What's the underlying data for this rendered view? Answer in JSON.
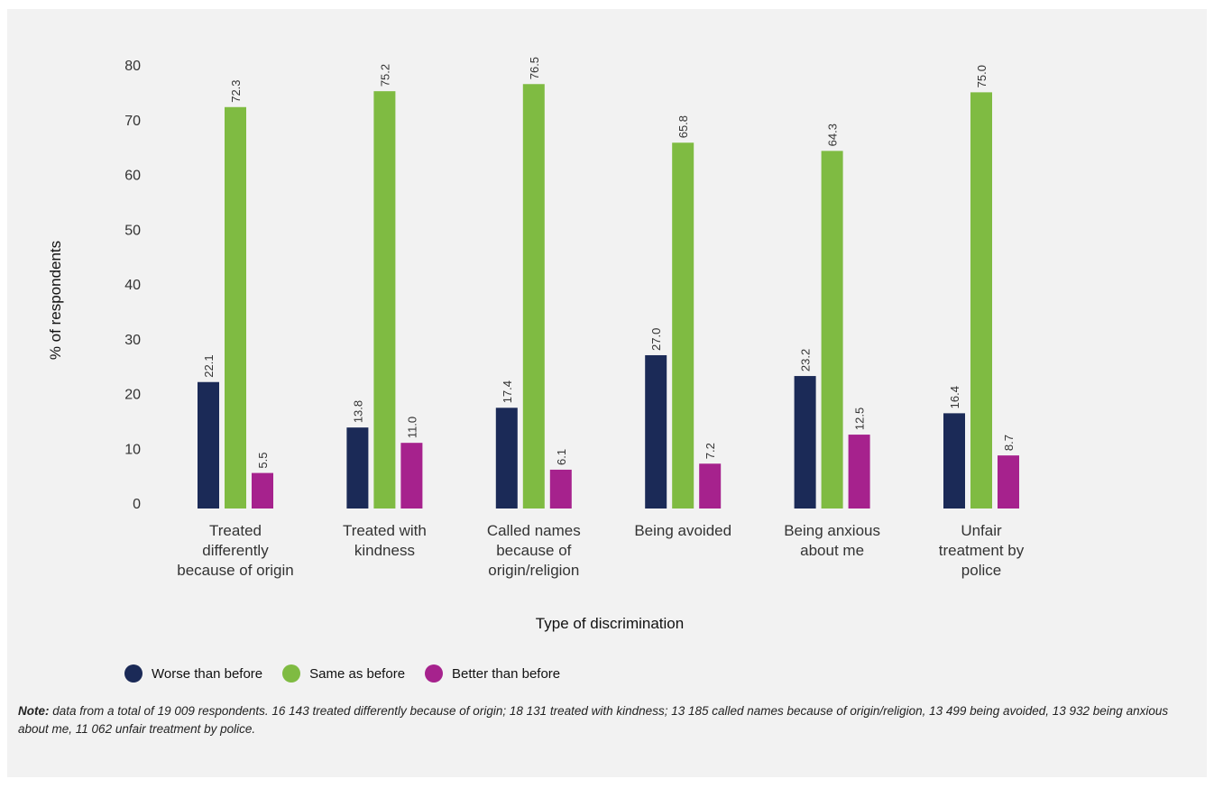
{
  "chart_data": {
    "type": "bar",
    "xlabel": "Type of discrimination",
    "ylabel": "% of respondents",
    "ylim": [
      0,
      80
    ],
    "yticks": [
      0,
      10,
      20,
      30,
      40,
      50,
      60,
      70,
      80
    ],
    "categories": [
      [
        "Treated",
        "differently",
        "because of origin"
      ],
      [
        "Treated with",
        "kindness"
      ],
      [
        "Called names",
        "because of",
        "origin/religion"
      ],
      [
        "Being avoided"
      ],
      [
        "Being anxious",
        "about me"
      ],
      [
        "Unfair",
        "treatment by",
        "police"
      ]
    ],
    "series": [
      {
        "name": "Worse than before",
        "color": "#1b2a57",
        "values": [
          22.1,
          13.8,
          17.4,
          27.0,
          23.2,
          16.4
        ],
        "labels": [
          "22.1",
          "13.8",
          "17.4",
          "27.0",
          "23.2",
          "16.4"
        ]
      },
      {
        "name": "Same as before",
        "color": "#7fbb42",
        "values": [
          72.3,
          75.2,
          76.5,
          65.8,
          64.3,
          75.0
        ],
        "labels": [
          "72.3",
          "75.2",
          "76.5",
          "65.8",
          "64.3",
          "75.0"
        ]
      },
      {
        "name": "Better than before",
        "color": "#a6228d",
        "values": [
          5.5,
          11.0,
          6.1,
          7.2,
          12.5,
          8.7
        ],
        "labels": [
          "5.5",
          "11.0",
          "6.1",
          "7.2",
          "12.5",
          "8.7"
        ]
      }
    ],
    "legend_position": "bottom-left",
    "grid": false
  },
  "note": {
    "label": "Note:",
    "text": " data from a total of 19 009 respondents. 16 143 treated differently because of origin; 18 131 treated with kindness; 13 185 called names because of origin/religion, 13 499 being avoided, 13 932 being anxious about me, 11 062 unfair treatment by police."
  }
}
